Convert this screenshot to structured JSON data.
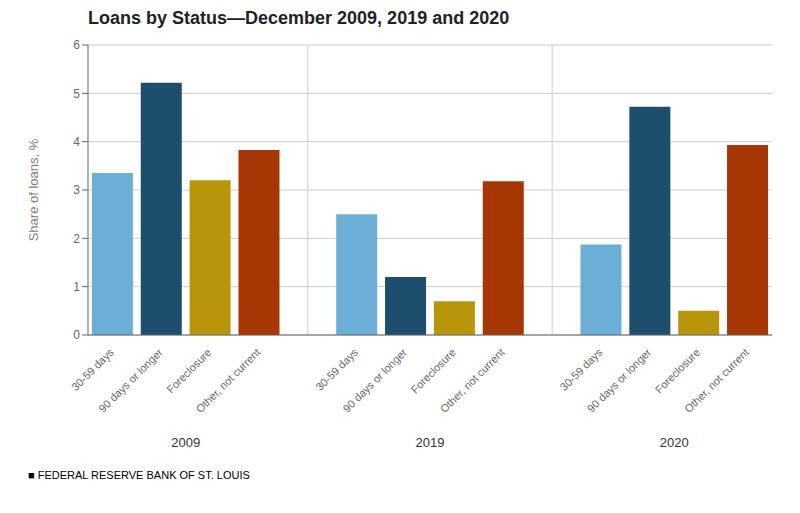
{
  "chart_data": {
    "type": "bar",
    "title": "Loans by Status—December 2009, 2019 and 2020",
    "ylabel": "Share of loans, %",
    "footer": "■  FEDERAL RESERVE BANK OF ST. LOUIS",
    "groups": [
      "2009",
      "2019",
      "2020"
    ],
    "categories": [
      "30-59 days",
      "90 days or longer",
      "Foreclosure",
      "Other, not current",
      "30-59 days",
      "90 days or longer",
      "Foreclosure",
      "Other, not current",
      "30-59 days",
      "90 days or longer",
      "Foreclosure",
      "Other, not current"
    ],
    "values": [
      3.35,
      5.22,
      3.2,
      3.83,
      2.5,
      1.2,
      0.7,
      3.18,
      1.87,
      4.72,
      0.5,
      3.93
    ],
    "colors": [
      "#6baed6",
      "#1d4e6e",
      "#b8960c",
      "#a63603",
      "#6baed6",
      "#1d4e6e",
      "#b8960c",
      "#a63603",
      "#6baed6",
      "#1d4e6e",
      "#b8960c",
      "#a63603"
    ],
    "ylim": [
      0,
      6
    ],
    "yticks": [
      0,
      1,
      2,
      3,
      4,
      5,
      6
    ],
    "grid": true
  }
}
